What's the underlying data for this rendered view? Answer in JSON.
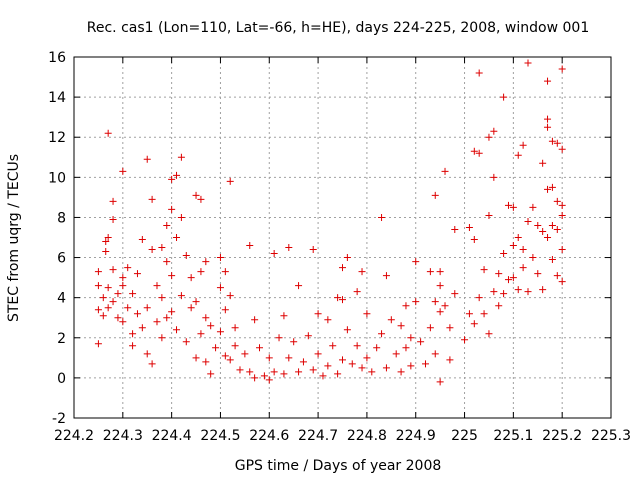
{
  "chart_data": {
    "type": "scatter",
    "title": "Rec. cas1 (Lon=110, Lat=-66, h=HE), days 224-225, 2008, window 001",
    "xlabel": "GPS time / Days of year 2008",
    "ylabel": "STEC from uqrg / TECUs",
    "xlim": [
      224.2,
      225.3
    ],
    "ylim": [
      -2,
      16
    ],
    "xticks": [
      224.2,
      224.3,
      224.4,
      224.5,
      224.6,
      224.7,
      224.8,
      224.9,
      225,
      225.1,
      225.2,
      225.3
    ],
    "xtick_labels": [
      "224.2",
      "224.3",
      "224.4",
      "224.5",
      "224.6",
      "224.7",
      "224.8",
      "224.9",
      "225",
      "225.1",
      "225.2",
      "225.3"
    ],
    "yticks": [
      -2,
      0,
      2,
      4,
      6,
      8,
      10,
      12,
      14,
      16
    ],
    "ytick_labels": [
      "-2",
      "0",
      "2",
      "4",
      "6",
      "8",
      "10",
      "12",
      "14",
      "16"
    ],
    "grid": true,
    "marker": "plus",
    "color": "#dd0000",
    "series": [
      {
        "points": [
          [
            224.25,
            1.7
          ],
          [
            224.25,
            3.4
          ],
          [
            224.25,
            4.6
          ],
          [
            224.25,
            5.3
          ],
          [
            224.26,
            4.0
          ],
          [
            224.26,
            3.1
          ],
          [
            224.265,
            6.3
          ],
          [
            224.265,
            6.8
          ],
          [
            224.27,
            12.2
          ],
          [
            224.27,
            7.0
          ],
          [
            224.27,
            3.5
          ],
          [
            224.27,
            4.5
          ],
          [
            224.28,
            7.9
          ],
          [
            224.28,
            8.8
          ],
          [
            224.28,
            5.4
          ],
          [
            224.28,
            3.8
          ],
          [
            224.29,
            3.0
          ],
          [
            224.29,
            4.2
          ],
          [
            224.3,
            10.3
          ],
          [
            224.3,
            5.0
          ],
          [
            224.3,
            2.8
          ],
          [
            224.3,
            4.6
          ],
          [
            224.31,
            3.5
          ],
          [
            224.31,
            5.5
          ],
          [
            224.32,
            4.2
          ],
          [
            224.32,
            2.2
          ],
          [
            224.32,
            1.6
          ],
          [
            224.33,
            3.2
          ],
          [
            224.33,
            5.2
          ],
          [
            224.34,
            6.9
          ],
          [
            224.34,
            2.5
          ],
          [
            224.35,
            10.9
          ],
          [
            224.35,
            1.2
          ],
          [
            224.35,
            3.5
          ],
          [
            224.36,
            8.9
          ],
          [
            224.36,
            6.4
          ],
          [
            224.36,
            0.7
          ],
          [
            224.37,
            4.6
          ],
          [
            224.37,
            2.8
          ],
          [
            224.38,
            6.5
          ],
          [
            224.38,
            2.0
          ],
          [
            224.38,
            4.0
          ],
          [
            224.39,
            7.6
          ],
          [
            224.39,
            5.8
          ],
          [
            224.39,
            3.0
          ],
          [
            224.4,
            9.9
          ],
          [
            224.4,
            8.4
          ],
          [
            224.4,
            5.1
          ],
          [
            224.4,
            3.3
          ],
          [
            224.41,
            7.0
          ],
          [
            224.41,
            10.1
          ],
          [
            224.41,
            2.4
          ],
          [
            224.42,
            11.0
          ],
          [
            224.42,
            8.0
          ],
          [
            224.42,
            4.1
          ],
          [
            224.43,
            6.1
          ],
          [
            224.43,
            1.8
          ],
          [
            224.44,
            5.0
          ],
          [
            224.44,
            3.5
          ],
          [
            224.45,
            9.1
          ],
          [
            224.45,
            3.8
          ],
          [
            224.45,
            1.0
          ],
          [
            224.46,
            8.9
          ],
          [
            224.46,
            5.3
          ],
          [
            224.46,
            2.2
          ],
          [
            224.47,
            5.8
          ],
          [
            224.47,
            3.0
          ],
          [
            224.47,
            0.8
          ],
          [
            224.48,
            2.6
          ],
          [
            224.48,
            0.2
          ],
          [
            224.49,
            1.5
          ],
          [
            224.5,
            6.0
          ],
          [
            224.5,
            4.5
          ],
          [
            224.5,
            2.3
          ],
          [
            224.51,
            5.3
          ],
          [
            224.51,
            3.4
          ],
          [
            224.51,
            1.1
          ],
          [
            224.52,
            9.8
          ],
          [
            224.52,
            4.1
          ],
          [
            224.52,
            0.9
          ],
          [
            224.53,
            2.5
          ],
          [
            224.53,
            1.6
          ],
          [
            224.54,
            0.4
          ],
          [
            224.55,
            1.2
          ],
          [
            224.56,
            6.6
          ],
          [
            224.56,
            0.3
          ],
          [
            224.57,
            2.9
          ],
          [
            224.57,
            0.0
          ],
          [
            224.58,
            1.5
          ],
          [
            224.59,
            0.1
          ],
          [
            224.6,
            1.0
          ],
          [
            224.6,
            -0.1
          ],
          [
            224.61,
            6.2
          ],
          [
            224.61,
            0.3
          ],
          [
            224.62,
            2.0
          ],
          [
            224.63,
            3.1
          ],
          [
            224.63,
            0.2
          ],
          [
            224.64,
            6.5
          ],
          [
            224.64,
            1.0
          ],
          [
            224.65,
            1.8
          ],
          [
            224.66,
            4.6
          ],
          [
            224.66,
            0.3
          ],
          [
            224.67,
            0.8
          ],
          [
            224.68,
            2.1
          ],
          [
            224.69,
            6.4
          ],
          [
            224.69,
            0.4
          ],
          [
            224.7,
            3.2
          ],
          [
            224.7,
            1.2
          ],
          [
            224.71,
            0.1
          ],
          [
            224.72,
            2.9
          ],
          [
            224.72,
            0.6
          ],
          [
            224.73,
            1.6
          ],
          [
            224.74,
            4.0
          ],
          [
            224.74,
            0.2
          ],
          [
            224.75,
            5.5
          ],
          [
            224.75,
            3.9
          ],
          [
            224.75,
            0.9
          ],
          [
            224.76,
            6.0
          ],
          [
            224.76,
            2.4
          ],
          [
            224.77,
            0.7
          ],
          [
            224.78,
            4.3
          ],
          [
            224.78,
            1.6
          ],
          [
            224.79,
            5.3
          ],
          [
            224.79,
            0.5
          ],
          [
            224.8,
            3.2
          ],
          [
            224.8,
            1.0
          ],
          [
            224.81,
            0.3
          ],
          [
            224.82,
            1.5
          ],
          [
            224.83,
            8.0
          ],
          [
            224.83,
            2.2
          ],
          [
            224.84,
            5.1
          ],
          [
            224.84,
            0.5
          ],
          [
            224.85,
            2.9
          ],
          [
            224.86,
            1.2
          ],
          [
            224.87,
            2.6
          ],
          [
            224.87,
            0.3
          ],
          [
            224.88,
            3.6
          ],
          [
            224.88,
            1.5
          ],
          [
            224.89,
            2.0
          ],
          [
            224.89,
            0.6
          ],
          [
            224.9,
            5.8
          ],
          [
            224.9,
            3.8
          ],
          [
            224.91,
            1.8
          ],
          [
            224.92,
            0.7
          ],
          [
            224.93,
            5.3
          ],
          [
            224.93,
            2.5
          ],
          [
            224.94,
            9.1
          ],
          [
            224.94,
            3.8
          ],
          [
            224.94,
            1.2
          ],
          [
            224.95,
            5.3
          ],
          [
            224.95,
            4.6
          ],
          [
            224.95,
            3.3
          ],
          [
            224.95,
            -0.2
          ],
          [
            224.96,
            10.3
          ],
          [
            224.96,
            3.6
          ],
          [
            224.97,
            2.5
          ],
          [
            224.97,
            0.9
          ],
          [
            224.98,
            7.4
          ],
          [
            224.98,
            4.2
          ],
          [
            225.0,
            1.9
          ],
          [
            225.01,
            7.5
          ],
          [
            225.01,
            3.2
          ],
          [
            225.02,
            11.3
          ],
          [
            225.02,
            2.7
          ],
          [
            225.02,
            6.9
          ],
          [
            225.03,
            15.2
          ],
          [
            225.03,
            11.2
          ],
          [
            225.03,
            4.0
          ],
          [
            225.04,
            5.4
          ],
          [
            225.04,
            3.2
          ],
          [
            225.05,
            12.0
          ],
          [
            225.05,
            8.1
          ],
          [
            225.05,
            2.2
          ],
          [
            225.06,
            12.3
          ],
          [
            225.06,
            10.0
          ],
          [
            225.06,
            4.3
          ],
          [
            225.07,
            5.2
          ],
          [
            225.07,
            3.6
          ],
          [
            225.08,
            14.0
          ],
          [
            225.08,
            6.2
          ],
          [
            225.08,
            4.2
          ],
          [
            225.09,
            8.6
          ],
          [
            225.09,
            4.9
          ],
          [
            225.1,
            8.5
          ],
          [
            225.1,
            6.6
          ],
          [
            225.1,
            5.0
          ],
          [
            225.11,
            11.1
          ],
          [
            225.11,
            7.0
          ],
          [
            225.11,
            4.4
          ],
          [
            225.12,
            11.6
          ],
          [
            225.12,
            6.4
          ],
          [
            225.12,
            5.5
          ],
          [
            225.13,
            15.7
          ],
          [
            225.13,
            7.8
          ],
          [
            225.13,
            4.3
          ],
          [
            225.14,
            8.5
          ],
          [
            225.14,
            6.0
          ],
          [
            225.15,
            7.6
          ],
          [
            225.15,
            5.2
          ],
          [
            225.16,
            10.7
          ],
          [
            225.16,
            7.3
          ],
          [
            225.16,
            4.4
          ],
          [
            225.17,
            14.8
          ],
          [
            225.17,
            12.9
          ],
          [
            225.17,
            12.5
          ],
          [
            225.17,
            9.4
          ],
          [
            225.17,
            7.0
          ],
          [
            225.18,
            11.8
          ],
          [
            225.18,
            9.5
          ],
          [
            225.18,
            7.6
          ],
          [
            225.18,
            5.9
          ],
          [
            225.19,
            11.7
          ],
          [
            225.19,
            8.8
          ],
          [
            225.19,
            7.4
          ],
          [
            225.19,
            5.1
          ],
          [
            225.2,
            15.4
          ],
          [
            225.2,
            11.4
          ],
          [
            225.2,
            8.6
          ],
          [
            225.2,
            8.1
          ],
          [
            225.2,
            6.4
          ],
          [
            225.2,
            4.8
          ]
        ]
      }
    ]
  }
}
